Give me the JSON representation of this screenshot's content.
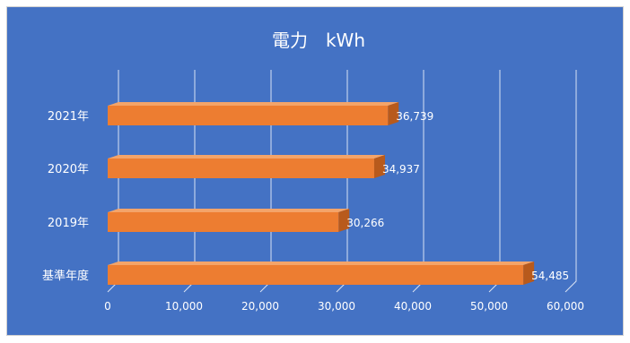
{
  "chart_data": {
    "type": "bar",
    "orientation": "horizontal",
    "title": "電力　kWh",
    "categories": [
      "2021年",
      "2020年",
      "2019年",
      "基準年度"
    ],
    "values": [
      36739,
      34937,
      30266,
      54485
    ],
    "value_labels": [
      "36,739",
      "34,937",
      "30,266",
      "54,485"
    ],
    "xlim": [
      0,
      60000
    ],
    "x_ticks": [
      0,
      10000,
      20000,
      30000,
      40000,
      50000,
      60000
    ],
    "x_tick_labels": [
      "0",
      "10,000",
      "20,000",
      "30,000",
      "40,000",
      "50,000",
      "60,000"
    ],
    "grid": true,
    "legend": "none",
    "style": "3d",
    "colors": {
      "background": "#4472c4",
      "bar_front": "#ed7d31",
      "bar_top": "#f4a469",
      "bar_side": "#b85a1c",
      "grid": "#d9e2f3",
      "text": "#ffffff"
    }
  }
}
